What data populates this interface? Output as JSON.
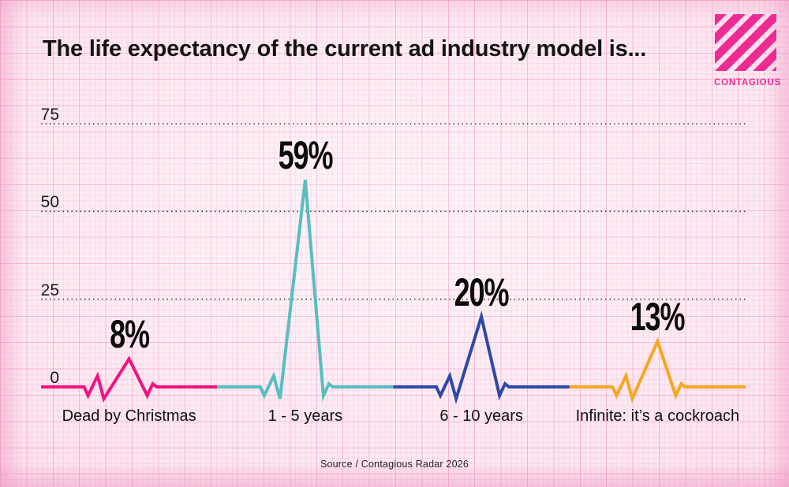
{
  "header": {
    "title": "The life expectancy of the current ad industry model is..."
  },
  "logo": {
    "text": "CONTAGIOUS",
    "color": "#ee2a93"
  },
  "chart_data": {
    "type": "line",
    "style": "ekg-heartbeat-pulse",
    "title": "The life expectancy of the current ad industry model is...",
    "categories": [
      "Dead by Christmas",
      "1 - 5 years",
      "6 - 10 years",
      "Infinite: it’s a cockroach"
    ],
    "values": [
      8,
      59,
      20,
      13
    ],
    "value_labels": [
      "8%",
      "59%",
      "20%",
      "13%"
    ],
    "series_colors": [
      "#f0137f",
      "#56bec1",
      "#2c49a7",
      "#f6a71e"
    ],
    "y_ticks": [
      0,
      25,
      50,
      75
    ],
    "ylim": [
      0,
      75
    ],
    "grid": "horizontal-dotted",
    "gridline_color": "#3a3a3a",
    "legend": "none",
    "source": "Source / Contagious Radar 2026"
  },
  "footer": {
    "source": "Source / Contagious Radar 2026"
  }
}
